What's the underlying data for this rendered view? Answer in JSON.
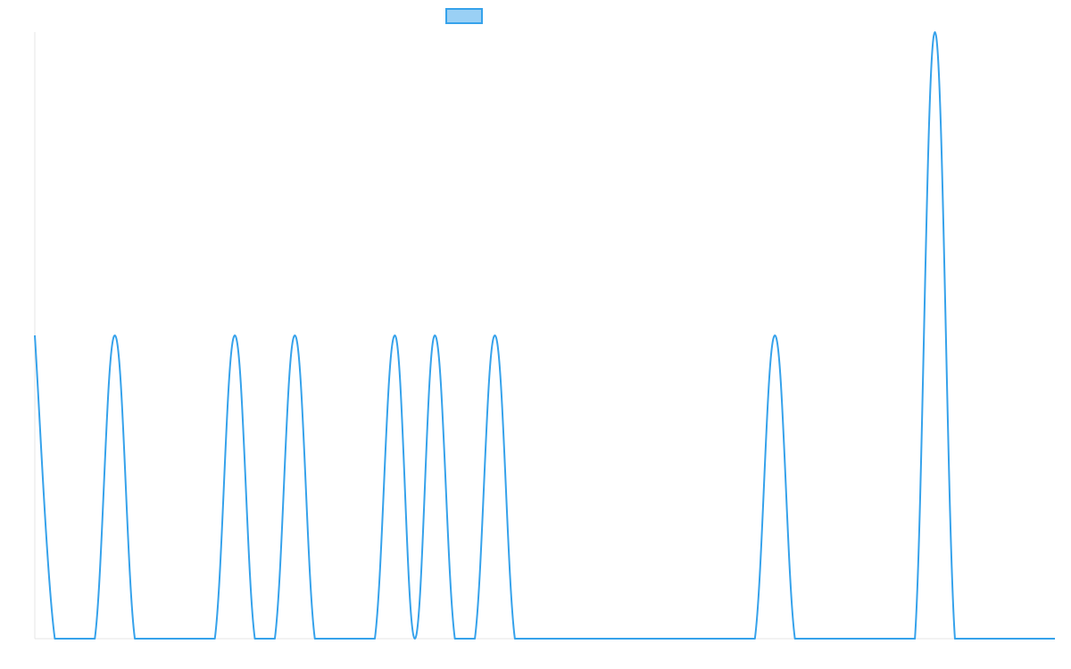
{
  "chart_data": {
    "type": "line",
    "title": "",
    "xlabel": "",
    "ylabel": "",
    "x_range": [
      0,
      51
    ],
    "ylim": [
      0,
      2
    ],
    "grid": false,
    "legend": {
      "placement": "top-center",
      "show_text": false
    },
    "series": [
      {
        "line_color": "#36a2eb",
        "fill_color": "#9ad0f5",
        "tension": 0.4,
        "values": [
          1,
          0,
          0,
          0,
          1,
          0,
          0,
          0,
          0,
          0,
          1,
          0,
          0,
          1,
          0,
          0,
          0,
          0,
          1,
          0,
          1,
          0,
          0,
          1,
          0,
          0,
          0,
          0,
          0,
          0,
          0,
          0,
          0,
          0,
          0,
          0,
          0,
          1,
          0,
          0,
          0,
          0,
          0,
          0,
          0,
          2,
          0,
          0,
          0,
          0,
          0,
          0
        ]
      }
    ]
  }
}
